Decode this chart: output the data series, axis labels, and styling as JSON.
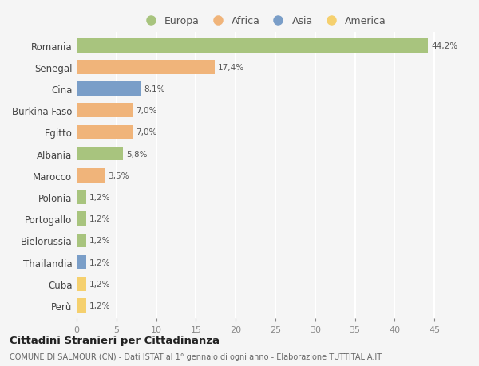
{
  "countries": [
    "Romania",
    "Senegal",
    "Cina",
    "Burkina Faso",
    "Egitto",
    "Albania",
    "Marocco",
    "Polonia",
    "Portogallo",
    "Bielorussia",
    "Thailandia",
    "Cuba",
    "Perù"
  ],
  "values": [
    44.2,
    17.4,
    8.1,
    7.0,
    7.0,
    5.8,
    3.5,
    1.2,
    1.2,
    1.2,
    1.2,
    1.2,
    1.2
  ],
  "labels": [
    "44,2%",
    "17,4%",
    "8,1%",
    "7,0%",
    "7,0%",
    "5,8%",
    "3,5%",
    "1,2%",
    "1,2%",
    "1,2%",
    "1,2%",
    "1,2%",
    "1,2%"
  ],
  "continents": [
    "Europa",
    "Africa",
    "Asia",
    "Africa",
    "Africa",
    "Europa",
    "Africa",
    "Europa",
    "Europa",
    "Europa",
    "Asia",
    "America",
    "America"
  ],
  "continent_colors": {
    "Europa": "#a8c47e",
    "Africa": "#f0b47a",
    "Asia": "#7a9ec8",
    "America": "#f5d06e"
  },
  "legend_order": [
    "Europa",
    "Africa",
    "Asia",
    "America"
  ],
  "xlim": [
    0,
    47
  ],
  "xticks": [
    0,
    5,
    10,
    15,
    20,
    25,
    30,
    35,
    40,
    45
  ],
  "title": "Cittadini Stranieri per Cittadinanza",
  "subtitle": "COMUNE DI SALMOUR (CN) - Dati ISTAT al 1° gennaio di ogni anno - Elaborazione TUTTITALIA.IT",
  "background_color": "#f5f5f5",
  "grid_color": "#ffffff",
  "bar_height": 0.65
}
